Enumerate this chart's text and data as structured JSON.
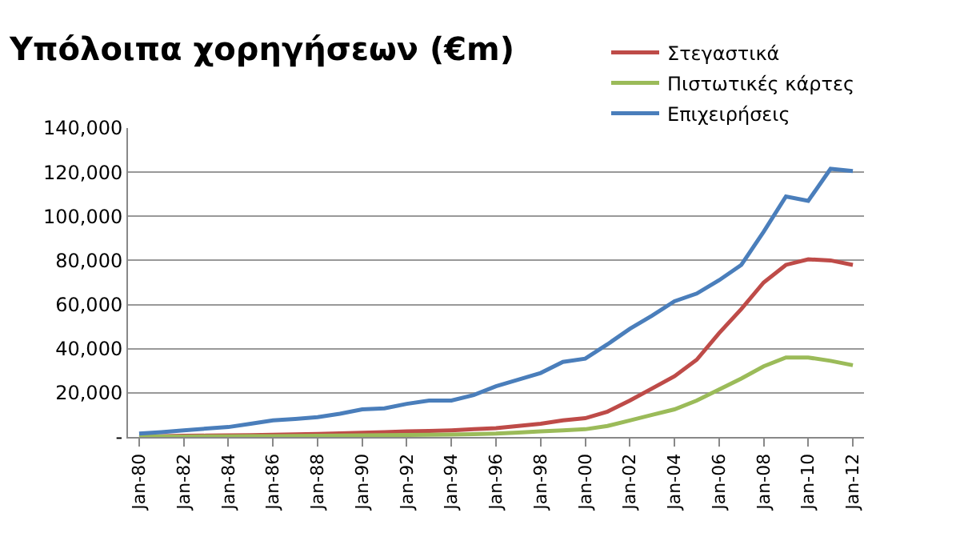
{
  "chart_data": {
    "type": "line",
    "title": "Υπόλοιπα χορηγήσεων (€m)",
    "categories": [
      "Jan-80",
      null,
      "Jan-82",
      null,
      "Jan-84",
      null,
      "Jan-86",
      null,
      "Jan-88",
      null,
      "Jan-90",
      null,
      "Jan-92",
      null,
      "Jan-94",
      null,
      "Jan-96",
      null,
      "Jan-98",
      null,
      "Jan-00",
      null,
      "Jan-02",
      null,
      "Jan-04",
      null,
      "Jan-06",
      null,
      "Jan-08",
      null,
      "Jan-10",
      null,
      "Jan-12"
    ],
    "series": [
      {
        "name": "Στεγαστικά",
        "color": "#be4b48",
        "values": [
          300,
          400,
          500,
          600,
          700,
          800,
          1000,
          1200,
          1400,
          1600,
          1900,
          2200,
          2500,
          2700,
          3000,
          3500,
          4000,
          5000,
          6000,
          7500,
          8500,
          11500,
          16500,
          22000,
          27500,
          35000,
          47000,
          58000,
          70000,
          78000,
          80500,
          80000,
          78000
        ]
      },
      {
        "name": "Πιστωτικές κάρτες",
        "color": "#9bbb59",
        "values": [
          100,
          150,
          200,
          250,
          300,
          350,
          400,
          450,
          500,
          600,
          700,
          800,
          900,
          1000,
          1100,
          1300,
          1500,
          2000,
          2500,
          3000,
          3500,
          5000,
          7500,
          10000,
          12500,
          16500,
          21500,
          26500,
          32000,
          36000,
          36000,
          34500,
          32500
        ]
      },
      {
        "name": "Επιχειρήσεις",
        "color": "#4a7ebb",
        "values": [
          1500,
          2200,
          3000,
          3800,
          4500,
          6000,
          7500,
          8200,
          9000,
          10500,
          12500,
          13000,
          15000,
          16500,
          16500,
          19000,
          23000,
          26000,
          29000,
          34000,
          35500,
          42000,
          49000,
          55000,
          61500,
          65000,
          71000,
          78000,
          93000,
          109000,
          107000,
          121500,
          120500
        ]
      }
    ],
    "ylim": [
      0,
      140000
    ],
    "yticks": [
      {
        "value": 0,
        "label": "-"
      },
      {
        "value": 20000,
        "label": "20,000"
      },
      {
        "value": 40000,
        "label": "40,000"
      },
      {
        "value": 60000,
        "label": "60,000"
      },
      {
        "value": 80000,
        "label": "80,000"
      },
      {
        "value": 100000,
        "label": "100,000"
      },
      {
        "value": 120000,
        "label": "120,000"
      },
      {
        "value": 140000,
        "label": "140,000"
      }
    ],
    "grid": "y",
    "legend": "top right",
    "marker": "none",
    "line_style": "solid"
  }
}
